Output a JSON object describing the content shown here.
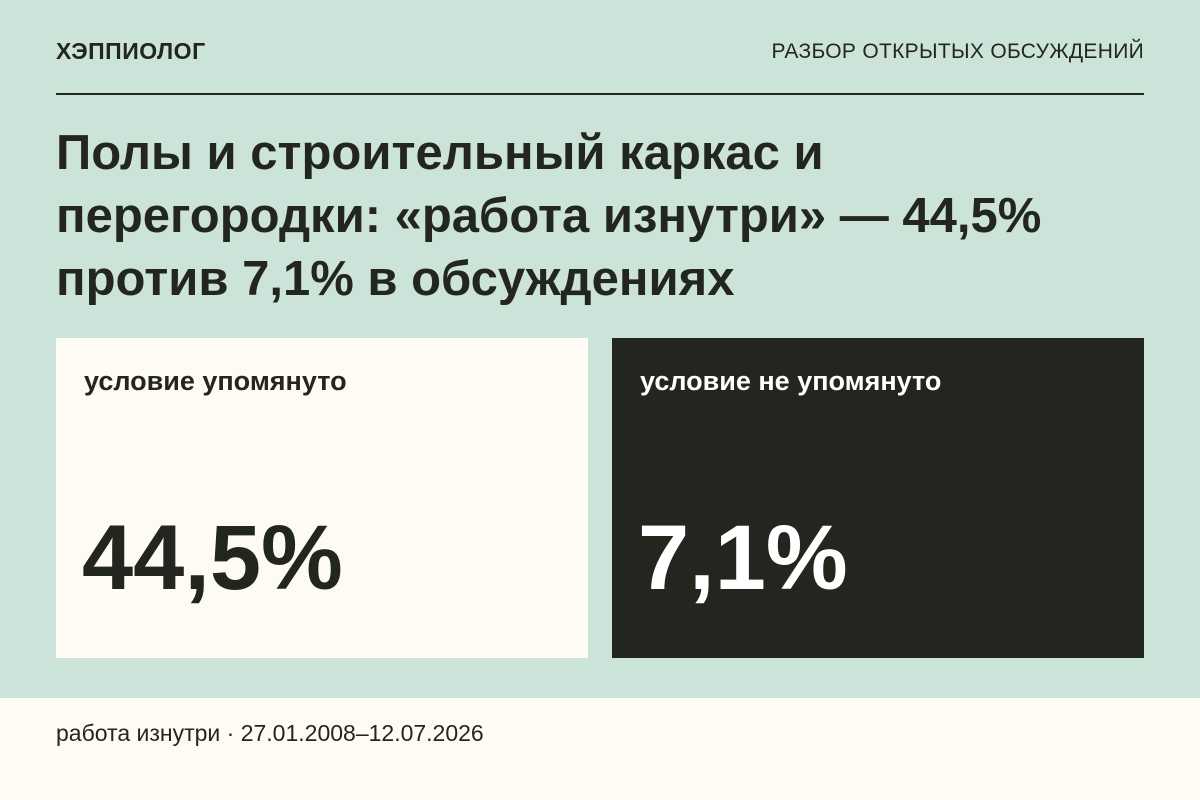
{
  "header": {
    "brand": "ХЭППИОЛОГ",
    "section": "РАЗБОР ОТКРЫТЫХ ОБСУЖДЕНИЙ"
  },
  "headline": "Полы и строительный каркас и перегородки: «работа изнутри» — 44,5% против 7,1% в обсуждениях",
  "cards": [
    {
      "label": "условие упомянуто",
      "value": "44,5%"
    },
    {
      "label": "условие не упомянуто",
      "value": "7,1%"
    }
  ],
  "footer": {
    "text": "работа изнутри · 27.01.2008–12.07.2026"
  },
  "colors": {
    "background": "#cce3da",
    "card_light": "#fdfbf3",
    "card_dark": "#23261f",
    "text_dark": "#23261f"
  }
}
